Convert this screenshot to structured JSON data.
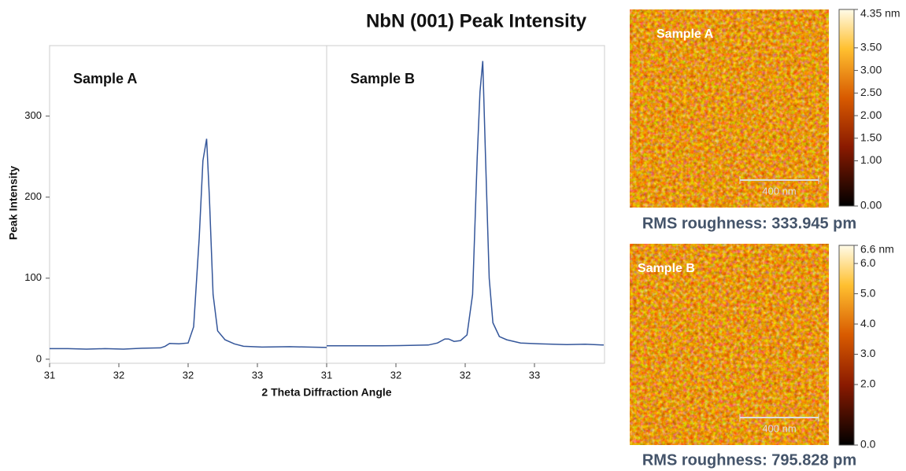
{
  "chart_data": {
    "type": "line",
    "title": "NbN (001) Peak Intensity",
    "x_label": "2 Theta Diffraction Angle",
    "y_label": "Peak Intensity",
    "ylim": [
      -5,
      387
    ],
    "yticks": [
      0,
      100,
      200,
      300
    ],
    "color": "#34569a",
    "panels": [
      {
        "label": "Sample A",
        "xlim": [
          31,
          34
        ],
        "xticks": [
          {
            "value": 31,
            "label": "31"
          },
          {
            "value": 31.75,
            "label": "32"
          },
          {
            "value": 32.5,
            "label": "32"
          },
          {
            "value": 33.25,
            "label": "33"
          }
        ],
        "x": [
          31.0,
          31.2,
          31.4,
          31.6,
          31.8,
          32.0,
          32.2,
          32.25,
          32.3,
          32.4,
          32.5,
          32.56,
          32.62,
          32.66,
          32.7,
          32.73,
          32.77,
          32.82,
          32.9,
          33.0,
          33.1,
          33.3,
          33.6,
          33.8,
          34.0
        ],
        "values": [
          13,
          13,
          12.5,
          13,
          12.5,
          13.5,
          14,
          16,
          19.5,
          19,
          20,
          40,
          150,
          245,
          272,
          200,
          80,
          35,
          24,
          19,
          16,
          15,
          15.5,
          15,
          14.5
        ]
      },
      {
        "label": "Sample B",
        "xlim": [
          31,
          34
        ],
        "xticks": [
          {
            "value": 31,
            "label": "31"
          },
          {
            "value": 31.75,
            "label": "32"
          },
          {
            "value": 32.5,
            "label": "32"
          },
          {
            "value": 33.25,
            "label": "33"
          }
        ],
        "x": [
          31.0,
          31.3,
          31.6,
          31.9,
          32.1,
          32.2,
          32.28,
          32.32,
          32.38,
          32.45,
          32.52,
          32.58,
          32.63,
          32.66,
          32.69,
          32.72,
          32.76,
          32.8,
          32.87,
          32.95,
          33.1,
          33.3,
          33.6,
          33.8,
          34.0
        ],
        "values": [
          16.5,
          16.5,
          16.5,
          17,
          17.5,
          20,
          25,
          25,
          22,
          23,
          30,
          80,
          250,
          330,
          368,
          250,
          100,
          45,
          28,
          24,
          20,
          19,
          18,
          18.5,
          17.5
        ]
      }
    ]
  },
  "afm": [
    {
      "label": "Sample A",
      "scale_bar": "400 nm",
      "caption": "RMS roughness: 333.945 pm",
      "clim": [
        0,
        4.35
      ],
      "cticks": [
        {
          "value": 4.35,
          "label": "4.35 nm"
        },
        {
          "value": 3.5,
          "label": "3.50"
        },
        {
          "value": 3.0,
          "label": "3.00"
        },
        {
          "value": 2.5,
          "label": "2.50"
        },
        {
          "value": 2.0,
          "label": "2.00"
        },
        {
          "value": 1.5,
          "label": "1.50"
        },
        {
          "value": 1.0,
          "label": "1.00"
        },
        {
          "value": 0,
          "label": "0.00"
        }
      ]
    },
    {
      "label": "Sample B",
      "scale_bar": "400 nm",
      "caption": "RMS roughness: 795.828 pm",
      "clim": [
        0,
        6.6
      ],
      "cticks": [
        {
          "value": 6.6,
          "label": "6.6 nm"
        },
        {
          "value": 6.0,
          "label": "6.0"
        },
        {
          "value": 5.0,
          "label": "5.0"
        },
        {
          "value": 4.0,
          "label": "4.0"
        },
        {
          "value": 3.0,
          "label": "3.0"
        },
        {
          "value": 2.0,
          "label": "2.0"
        },
        {
          "value": 0,
          "label": "0.0"
        }
      ]
    }
  ]
}
